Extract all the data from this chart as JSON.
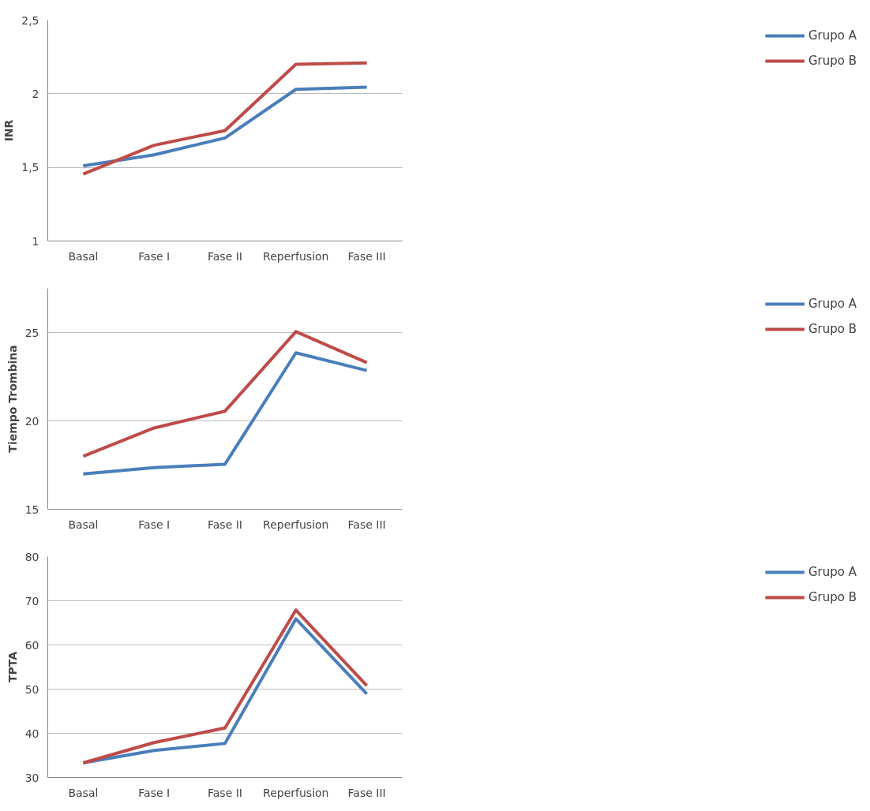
{
  "chart_data": [
    {
      "type": "line",
      "ylabel": "INR",
      "categories": [
        "Basal",
        "Fase I",
        "Fase II",
        "Reperfusion",
        "Fase III"
      ],
      "ylim": [
        1,
        2.5
      ],
      "yticks": [
        1,
        {
          "value": 1.5,
          "label": "1,5"
        },
        2,
        {
          "value": 2.5,
          "label": "2,5"
        }
      ],
      "grid": "y",
      "legend": "right",
      "marker": "none",
      "series": [
        {
          "name": "Grupo A",
          "color": "#4a7ebb",
          "values": [
            1.51,
            1.585,
            1.7,
            2.03,
            2.045
          ]
        },
        {
          "name": "Grupo B",
          "color": "#be4b48",
          "values": [
            1.455,
            1.65,
            1.75,
            2.2,
            2.21
          ]
        }
      ]
    },
    {
      "type": "line",
      "ylabel": "Tiempo Trombina",
      "categories": [
        "Basal",
        "Fase I",
        "Fase II",
        "Reperfusion",
        "Fase III"
      ],
      "ylim": [
        15,
        27.5
      ],
      "yticks": [
        15,
        20,
        25
      ],
      "grid": "y",
      "legend": "right",
      "marker": "none",
      "series": [
        {
          "name": "Grupo A",
          "color": "#4a7ebb",
          "values": [
            17.0,
            17.35,
            17.55,
            23.85,
            22.85
          ]
        },
        {
          "name": "Grupo B",
          "color": "#be4b48",
          "values": [
            18.0,
            19.6,
            20.55,
            25.05,
            23.3
          ]
        }
      ]
    },
    {
      "type": "line",
      "ylabel": "TPTA",
      "categories": [
        "Basal",
        "Fase I",
        "Fase II",
        "Reperfusion",
        "Fase III"
      ],
      "ylim": [
        30,
        80
      ],
      "yticks": [
        30,
        40,
        50,
        60,
        70,
        80
      ],
      "grid": "y",
      "legend": "right",
      "marker": "none",
      "series": [
        {
          "name": "Grupo A",
          "color": "#4a7ebb",
          "values": [
            33.3,
            36.1,
            37.7,
            65.9,
            48.9
          ]
        },
        {
          "name": "Grupo B",
          "color": "#be4b48",
          "values": [
            33.3,
            37.9,
            41.2,
            67.9,
            50.8
          ]
        }
      ]
    }
  ]
}
